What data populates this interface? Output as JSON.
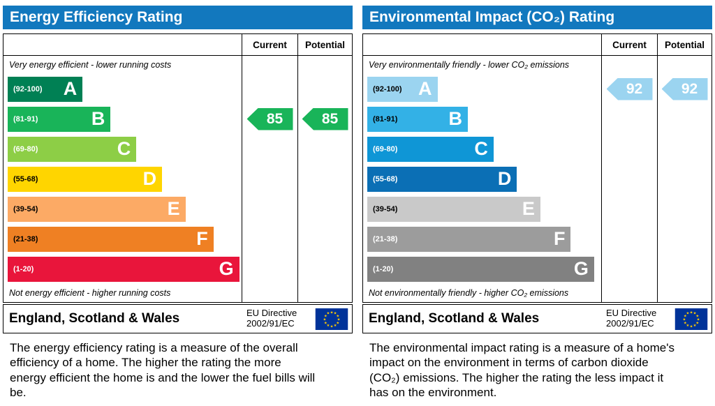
{
  "colors": {
    "header_bg": "#1278be",
    "header_text": "#ffffff",
    "border": "#000000",
    "flag_bg": "#003399",
    "flag_star": "#ffcc00"
  },
  "chart_data": [
    {
      "type": "bar",
      "title": "Energy Efficiency Rating",
      "columns": {
        "current": "Current",
        "potential": "Potential"
      },
      "top_note": "Very energy efficient - lower running costs",
      "bottom_note": "Not energy efficient - higher running costs",
      "bands": [
        {
          "letter": "A",
          "range": "(92-100)",
          "color": "#008054",
          "width_pct": 32,
          "range_color": "#ffffff"
        },
        {
          "letter": "B",
          "range": "(81-91)",
          "color": "#19b459",
          "width_pct": 44,
          "range_color": "#ffffff"
        },
        {
          "letter": "C",
          "range": "(69-80)",
          "color": "#8dce46",
          "width_pct": 55,
          "range_color": "#ffffff"
        },
        {
          "letter": "D",
          "range": "(55-68)",
          "color": "#ffd500",
          "width_pct": 66,
          "range_color": "#000000"
        },
        {
          "letter": "E",
          "range": "(39-54)",
          "color": "#fcaa65",
          "width_pct": 76,
          "range_color": "#000000"
        },
        {
          "letter": "F",
          "range": "(21-38)",
          "color": "#ef8023",
          "width_pct": 88,
          "range_color": "#000000"
        },
        {
          "letter": "G",
          "range": "(1-20)",
          "color": "#e9153b",
          "width_pct": 99,
          "range_color": "#ffffff"
        }
      ],
      "current": {
        "value": 85,
        "band": "B",
        "band_index": 1,
        "color": "#19b459"
      },
      "potential": {
        "value": 85,
        "band": "B",
        "band_index": 1,
        "color": "#19b459"
      },
      "footer": {
        "region": "England, Scotland & Wales",
        "directive": "EU Directive 2002/91/EC"
      },
      "description": "The energy efficiency rating is a measure of the overall efficiency of a home. The higher the rating the more energy efficient the home is and the lower the fuel bills will be."
    },
    {
      "type": "bar",
      "title": "Environmental Impact (CO₂) Rating",
      "columns": {
        "current": "Current",
        "potential": "Potential"
      },
      "top_note": "Very environmentally friendly - lower CO₂ emissions",
      "bottom_note": "Not environmentally friendly - higher CO₂ emissions",
      "bands": [
        {
          "letter": "A",
          "range": "(92-100)",
          "color": "#9bd4f0",
          "width_pct": 30,
          "range_color": "#000000"
        },
        {
          "letter": "B",
          "range": "(81-91)",
          "color": "#33b1e6",
          "width_pct": 43,
          "range_color": "#000000"
        },
        {
          "letter": "C",
          "range": "(69-80)",
          "color": "#0f96d6",
          "width_pct": 54,
          "range_color": "#ffffff"
        },
        {
          "letter": "D",
          "range": "(55-68)",
          "color": "#0b6fb5",
          "width_pct": 64,
          "range_color": "#ffffff"
        },
        {
          "letter": "E",
          "range": "(39-54)",
          "color": "#c9c9c9",
          "width_pct": 74,
          "range_color": "#000000"
        },
        {
          "letter": "F",
          "range": "(21-38)",
          "color": "#9c9c9c",
          "width_pct": 87,
          "range_color": "#ffffff"
        },
        {
          "letter": "G",
          "range": "(1-20)",
          "color": "#818181",
          "width_pct": 97,
          "range_color": "#ffffff"
        }
      ],
      "current": {
        "value": 92,
        "band": "A",
        "band_index": 0,
        "color": "#9bd4f0"
      },
      "potential": {
        "value": 92,
        "band": "A",
        "band_index": 0,
        "color": "#9bd4f0"
      },
      "footer": {
        "region": "England, Scotland & Wales",
        "directive": "EU Directive 2002/91/EC"
      },
      "description": "The environmental impact rating is a measure of a home's impact on the environment in terms of carbon dioxide (CO₂) emissions. The higher the rating the less impact it has on the environment."
    }
  ]
}
